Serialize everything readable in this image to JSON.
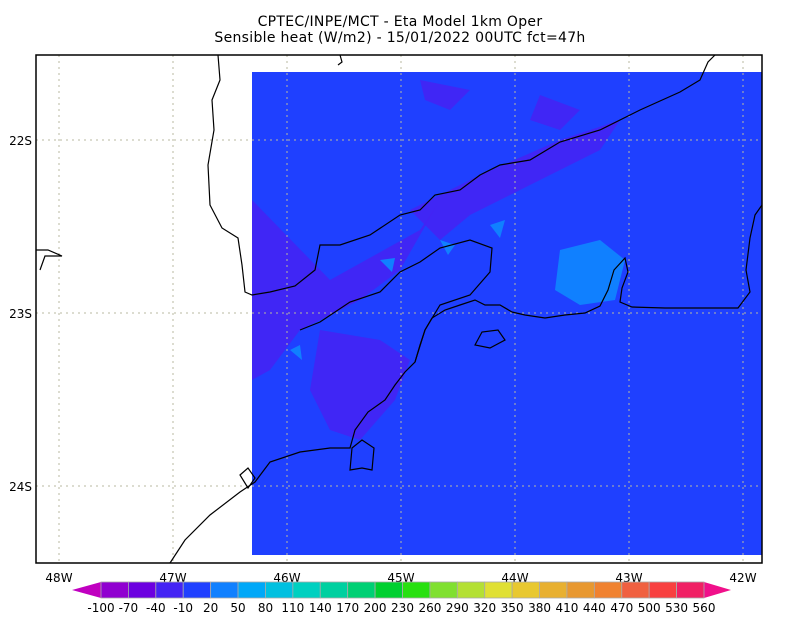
{
  "title": {
    "line1": "CPTEC/INPE/MCT -  Eta Model 1km Oper",
    "line2": "Sensible heat (W/m2) - 15/01/2022 00UTC fct=47h"
  },
  "axes": {
    "lon_labels": [
      "48W",
      "47W",
      "46W",
      "45W",
      "44W",
      "43W",
      "42W"
    ],
    "lat_labels": [
      "22S",
      "23S",
      "24S"
    ]
  },
  "colorbar": {
    "labels": [
      "-100",
      "-70",
      "-40",
      "-10",
      "20",
      "50",
      "80",
      "110",
      "140",
      "170",
      "200",
      "230",
      "260",
      "290",
      "320",
      "350",
      "380",
      "410",
      "440",
      "470",
      "500",
      "530",
      "560"
    ],
    "colors": [
      "#9000d0",
      "#6c00e0",
      "#4424f4",
      "#2040ff",
      "#1080ff",
      "#00a8f8",
      "#00c0e0",
      "#00d0c0",
      "#00d0a0",
      "#00d074",
      "#00d030",
      "#28e010",
      "#80e030",
      "#b4e034",
      "#e0e034",
      "#e8c830",
      "#e8b030",
      "#e89830",
      "#f08230",
      "#f06040",
      "#f84040",
      "#f02064"
    ],
    "under_color": "#c000c0",
    "over_color": "#f0108a"
  },
  "field": {
    "dominant_color": "#1f40ff",
    "low_color": "#4424f4",
    "high_color": "#1080ff",
    "grid_color": "#b8b8a0"
  }
}
